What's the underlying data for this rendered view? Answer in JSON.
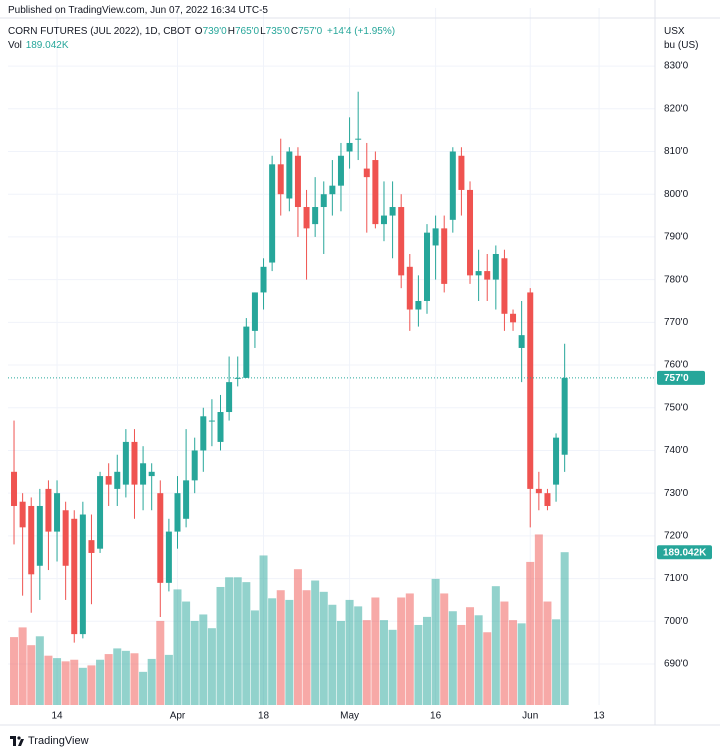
{
  "chart_data": {
    "type": "candlestick",
    "publisher": "Published on TradingView.com, Jun 07, 2022 16:34 UTC-5",
    "title": "CORN FUTURES (JUL 2022), 1D, CBOT",
    "legend": [
      {
        "key": "O",
        "value": "739'0"
      },
      {
        "key": "H",
        "value": "765'0"
      },
      {
        "key": "L",
        "value": "735'0"
      },
      {
        "key": "C",
        "value": "757'0"
      }
    ],
    "change": "+14'4 (+1.95%)",
    "volume_name": "Vol",
    "volume_label": "189.042K",
    "unit_labels": [
      "USX",
      "bu (US)"
    ],
    "brand": "TradingView",
    "last_price": {
      "value": 757,
      "label": "757'0"
    },
    "up_color": "#26a69a",
    "down_color": "#ef5350",
    "xlim": [
      -0.7,
      74.5
    ],
    "xticks": [
      {
        "value": 5,
        "label": "14"
      },
      {
        "value": 19,
        "label": "Apr"
      },
      {
        "value": 29,
        "label": "18"
      },
      {
        "value": 39,
        "label": "May"
      },
      {
        "value": 49,
        "label": "16"
      },
      {
        "value": 60,
        "label": "Jun"
      },
      {
        "value": 68,
        "label": "13"
      }
    ],
    "ylim": [
      680.4,
      843.6
    ],
    "yticks": [
      {
        "value": 690,
        "label": "690'0"
      },
      {
        "value": 700,
        "label": "700'0"
      },
      {
        "value": 710,
        "label": "710'0"
      },
      {
        "value": 720,
        "label": "720'0"
      },
      {
        "value": 730,
        "label": "730'0"
      },
      {
        "value": 740,
        "label": "740'0"
      },
      {
        "value": 750,
        "label": "750'0"
      },
      {
        "value": 760,
        "label": "760'0"
      },
      {
        "value": 770,
        "label": "770'0"
      },
      {
        "value": 780,
        "label": "780'0"
      },
      {
        "value": 790,
        "label": "790'0"
      },
      {
        "value": 800,
        "label": "800'0"
      },
      {
        "value": 810,
        "label": "810'0"
      },
      {
        "value": 820,
        "label": "820'0"
      },
      {
        "value": 830,
        "label": "830'0"
      }
    ],
    "volume_lim": [
      0,
      600
    ],
    "grid": true,
    "open": [
      735,
      728,
      727,
      713,
      731,
      721,
      726,
      724,
      697,
      719,
      717,
      734,
      731,
      732,
      742,
      732,
      734,
      730,
      709,
      721,
      724,
      733,
      740,
      747,
      742,
      749,
      757,
      757,
      768,
      777,
      784,
      807,
      799,
      809,
      797,
      793,
      797,
      800,
      802,
      810,
      813,
      806,
      808,
      793,
      795,
      797,
      783,
      773,
      775,
      788,
      792,
      794,
      809,
      801,
      781,
      782,
      780,
      785,
      772,
      764,
      777,
      731,
      730,
      732,
      739
    ],
    "high": [
      747,
      730,
      729,
      731,
      733,
      733,
      728,
      726,
      728,
      725,
      735,
      737,
      739,
      745,
      745,
      741,
      737,
      733,
      724,
      734,
      745,
      743,
      750,
      752,
      753,
      762,
      762,
      771,
      777,
      785,
      809,
      813,
      811,
      811,
      801,
      804,
      803,
      808,
      812,
      818,
      824,
      812,
      810,
      803,
      803,
      800,
      786,
      781,
      793,
      795,
      795,
      811,
      811,
      803,
      787,
      786,
      788,
      787,
      773,
      775,
      778,
      735,
      731,
      744,
      765
    ],
    "low": [
      718,
      706,
      702,
      705,
      712,
      714,
      705,
      695,
      696,
      704,
      716,
      727,
      727,
      729,
      724,
      726,
      726,
      701,
      707,
      717,
      722,
      730,
      735,
      741,
      740,
      747,
      755,
      757,
      764,
      773,
      782,
      795,
      796,
      790,
      780,
      790,
      786,
      795,
      796,
      806,
      808,
      791,
      792,
      789,
      785,
      778,
      768,
      769,
      772,
      780,
      777,
      791,
      795,
      779,
      775,
      775,
      773,
      768,
      768,
      756,
      722,
      726,
      726,
      728,
      735
    ],
    "close": [
      727,
      722,
      711,
      727,
      721,
      730,
      713,
      697,
      725,
      716,
      734,
      732,
      735,
      742,
      732,
      737,
      735,
      709,
      721,
      730,
      733,
      740,
      748,
      747,
      749,
      756,
      757,
      769,
      777,
      783,
      807,
      800,
      810,
      797,
      792,
      797,
      800,
      802,
      809,
      812,
      813,
      804,
      793,
      795,
      797,
      781,
      773,
      775,
      791,
      792,
      779,
      810,
      801,
      781,
      782,
      780,
      786,
      772,
      770,
      767,
      731,
      730,
      727,
      743,
      757
    ],
    "volume": [
      84,
      96,
      74,
      85,
      61,
      58,
      54,
      56,
      46,
      49,
      56,
      63,
      70,
      67,
      64,
      41,
      57,
      104,
      62,
      143,
      128,
      104,
      112,
      95,
      146,
      158,
      158,
      152,
      117,
      185,
      132,
      142,
      130,
      168,
      142,
      154,
      140,
      124,
      104,
      130,
      122,
      105,
      133,
      105,
      93,
      133,
      138,
      99,
      109,
      156,
      138,
      116,
      99,
      121,
      111,
      90,
      147,
      128,
      105,
      101,
      177,
      211,
      128,
      106,
      189.042
    ]
  }
}
